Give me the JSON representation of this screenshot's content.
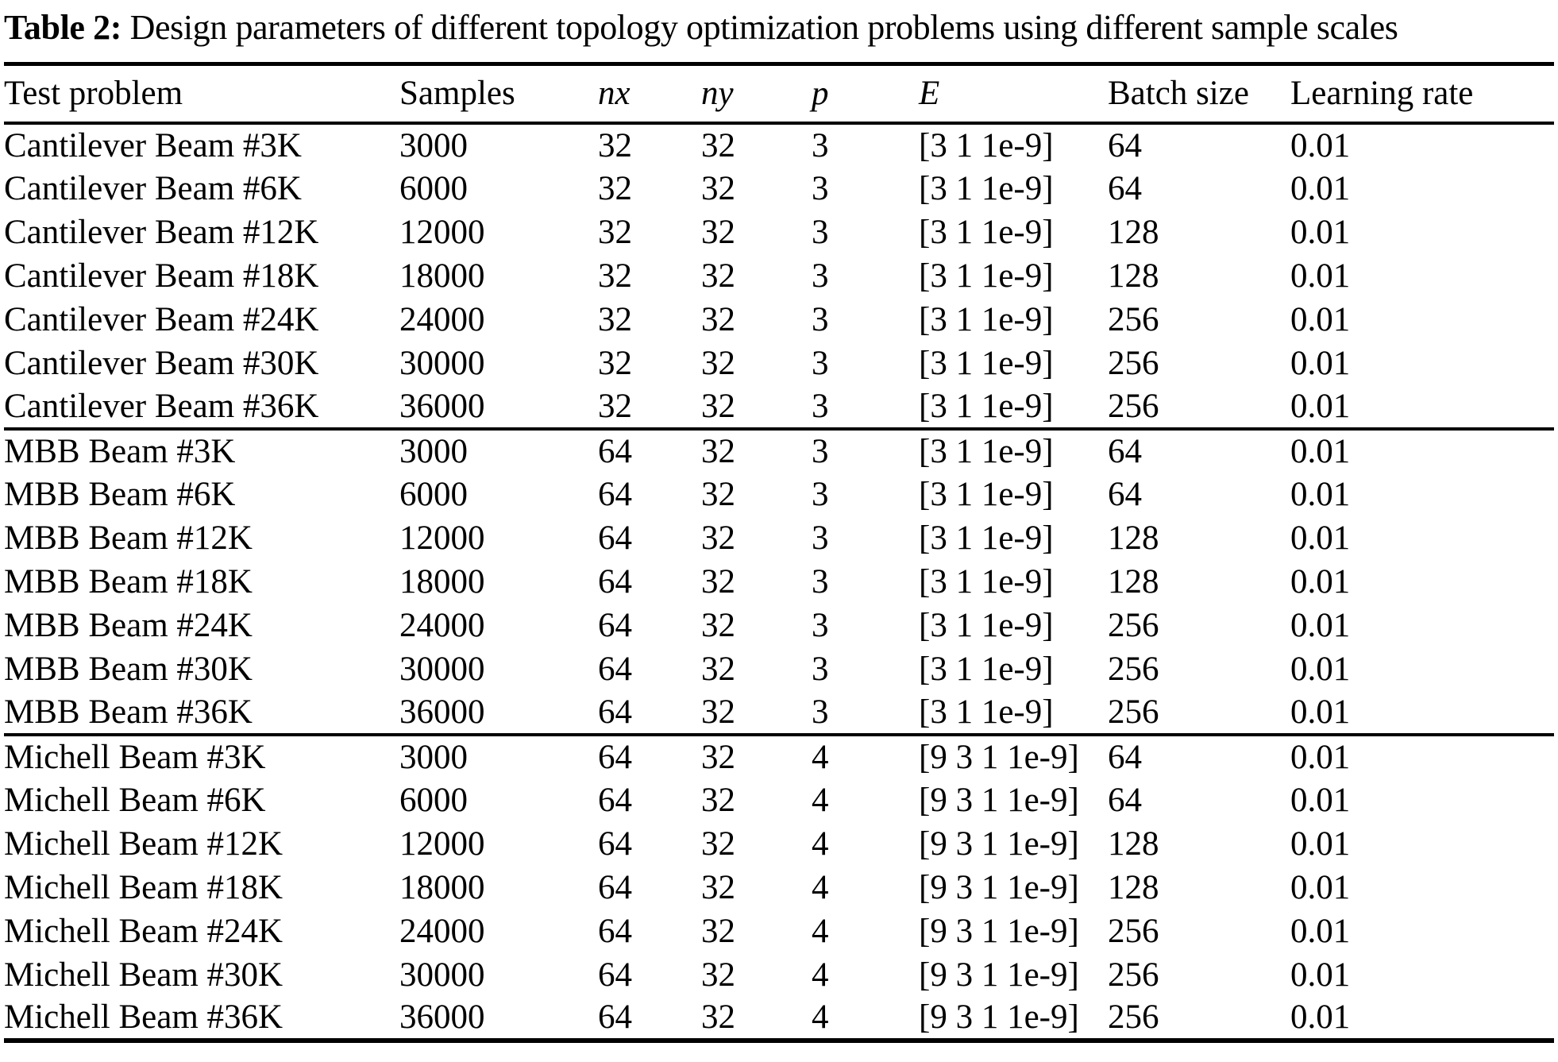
{
  "caption": {
    "label": "Table 2:",
    "text": " Design parameters of different topology optimization problems using different sample scales"
  },
  "table": {
    "columns": [
      {
        "label": "Test problem",
        "italic": false
      },
      {
        "label": "Samples",
        "italic": false
      },
      {
        "label": "nx",
        "italic": true
      },
      {
        "label": "ny",
        "italic": true
      },
      {
        "label": "p",
        "italic": true
      },
      {
        "label": "E",
        "italic": true
      },
      {
        "label": "Batch size",
        "italic": false
      },
      {
        "label": "Learning rate",
        "italic": false
      }
    ],
    "groups": [
      {
        "rows": [
          [
            "Cantilever Beam #3K",
            "3000",
            "32",
            "32",
            "3",
            "[3 1 1e-9]",
            "64",
            "0.01"
          ],
          [
            "Cantilever Beam #6K",
            "6000",
            "32",
            "32",
            "3",
            "[3 1 1e-9]",
            "64",
            "0.01"
          ],
          [
            "Cantilever Beam #12K",
            "12000",
            "32",
            "32",
            "3",
            "[3 1 1e-9]",
            "128",
            "0.01"
          ],
          [
            "Cantilever Beam #18K",
            "18000",
            "32",
            "32",
            "3",
            "[3 1 1e-9]",
            "128",
            "0.01"
          ],
          [
            "Cantilever Beam #24K",
            "24000",
            "32",
            "32",
            "3",
            "[3 1 1e-9]",
            "256",
            "0.01"
          ],
          [
            "Cantilever Beam #30K",
            "30000",
            "32",
            "32",
            "3",
            "[3 1 1e-9]",
            "256",
            "0.01"
          ],
          [
            "Cantilever Beam #36K",
            "36000",
            "32",
            "32",
            "3",
            "[3 1 1e-9]",
            "256",
            "0.01"
          ]
        ]
      },
      {
        "rows": [
          [
            "MBB Beam #3K",
            "3000",
            "64",
            "32",
            "3",
            "[3 1 1e-9]",
            "64",
            "0.01"
          ],
          [
            "MBB Beam #6K",
            "6000",
            "64",
            "32",
            "3",
            "[3 1 1e-9]",
            "64",
            "0.01"
          ],
          [
            "MBB Beam #12K",
            "12000",
            "64",
            "32",
            "3",
            "[3 1 1e-9]",
            "128",
            "0.01"
          ],
          [
            "MBB Beam #18K",
            "18000",
            "64",
            "32",
            "3",
            "[3 1 1e-9]",
            "128",
            "0.01"
          ],
          [
            "MBB Beam #24K",
            "24000",
            "64",
            "32",
            "3",
            "[3 1 1e-9]",
            "256",
            "0.01"
          ],
          [
            "MBB Beam #30K",
            "30000",
            "64",
            "32",
            "3",
            "[3 1 1e-9]",
            "256",
            "0.01"
          ],
          [
            "MBB Beam #36K",
            "36000",
            "64",
            "32",
            "3",
            "[3 1 1e-9]",
            "256",
            "0.01"
          ]
        ]
      },
      {
        "rows": [
          [
            "Michell Beam #3K",
            "3000",
            "64",
            "32",
            "4",
            "[9 3 1 1e-9]",
            "64",
            "0.01"
          ],
          [
            "Michell Beam #6K",
            "6000",
            "64",
            "32",
            "4",
            "[9 3 1 1e-9]",
            "64",
            "0.01"
          ],
          [
            "Michell Beam #12K",
            "12000",
            "64",
            "32",
            "4",
            "[9 3 1 1e-9]",
            "128",
            "0.01"
          ],
          [
            "Michell Beam #18K",
            "18000",
            "64",
            "32",
            "4",
            "[9 3 1 1e-9]",
            "128",
            "0.01"
          ],
          [
            "Michell Beam #24K",
            "24000",
            "64",
            "32",
            "4",
            "[9 3 1 1e-9]",
            "256",
            "0.01"
          ],
          [
            "Michell Beam #30K",
            "30000",
            "64",
            "32",
            "4",
            "[9 3 1 1e-9]",
            "256",
            "0.01"
          ],
          [
            "Michell Beam #36K",
            "36000",
            "64",
            "32",
            "4",
            "[9 3 1 1e-9]",
            "256",
            "0.01"
          ]
        ]
      }
    ]
  }
}
